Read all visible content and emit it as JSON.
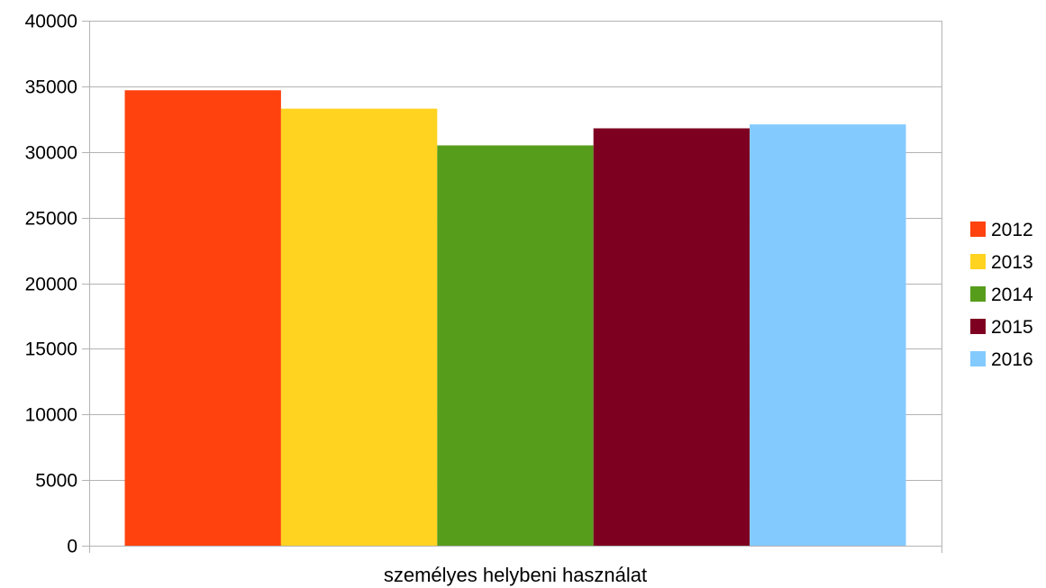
{
  "chart_data": {
    "type": "bar",
    "title": "",
    "xlabel": "",
    "ylabel": "",
    "categories": [
      "személyes helybeni használat"
    ],
    "series": [
      {
        "name": "2012",
        "values": [
          34700
        ],
        "color": "#ff420e"
      },
      {
        "name": "2013",
        "values": [
          33300
        ],
        "color": "#ffd320"
      },
      {
        "name": "2014",
        "values": [
          30500
        ],
        "color": "#579d1c"
      },
      {
        "name": "2015",
        "values": [
          31800
        ],
        "color": "#7e0021"
      },
      {
        "name": "2016",
        "values": [
          32100
        ],
        "color": "#83caff"
      }
    ],
    "ylim": [
      0,
      40000
    ],
    "yticks": [
      0,
      5000,
      10000,
      15000,
      20000,
      25000,
      30000,
      35000,
      40000
    ],
    "grid": true,
    "legend_position": "right"
  }
}
